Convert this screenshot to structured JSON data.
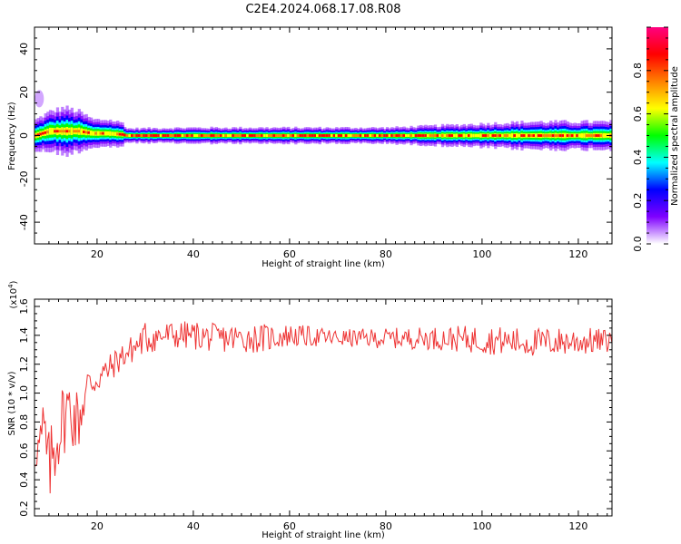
{
  "figure": {
    "title": "C2E4.2024.068.17.08.R08",
    "font_family": "DejaVu Sans"
  },
  "chart_data": [
    {
      "type": "heatmap",
      "title": "",
      "xlabel": "Height of straight line (km)",
      "ylabel": "Frequency (Hz)",
      "xlim": [
        7,
        127
      ],
      "ylim": [
        -50,
        50
      ],
      "xticks": [
        20,
        40,
        60,
        80,
        100,
        120
      ],
      "yticks": [
        -40,
        -20,
        0,
        20,
        40
      ],
      "colorbar": {
        "label": "Normalized spectral amplitude",
        "range": [
          0,
          1
        ],
        "ticks": [
          "0.0",
          "0.2",
          "0.4",
          "0.6",
          "0.8"
        ],
        "tick_values": [
          0.0,
          0.2,
          0.4,
          0.6,
          0.8
        ],
        "colors": [
          "#ffffff",
          "#7f00ff",
          "#0000ff",
          "#00ffff",
          "#00ff00",
          "#ffff00",
          "#ff8000",
          "#ff0000",
          "#ff0080"
        ]
      },
      "band": {
        "x": [
          7,
          10,
          13,
          16,
          19,
          22,
          25,
          26,
          40,
          60,
          80,
          100,
          110,
          127
        ],
        "halfwidth_hz": [
          4,
          5,
          6,
          5,
          3.5,
          3.5,
          3,
          1.8,
          2,
          2,
          2,
          3,
          3.5,
          3.5
        ],
        "center_hz": [
          0,
          2,
          2,
          2,
          1,
          1,
          0.5,
          0,
          0,
          0,
          0,
          0,
          0,
          0
        ]
      },
      "outlier": {
        "x": 8,
        "y_range_hz": [
          13,
          21
        ]
      }
    },
    {
      "type": "line",
      "title": "",
      "xlabel": "Height of straight line (km)",
      "ylabel": "SNR (10 * v/v)",
      "y_multiplier": "(x10",
      "y_multiplier_exp": "4",
      "y_multiplier_close": ")",
      "xlim": [
        7,
        127
      ],
      "ylim": [
        0.15,
        1.65
      ],
      "xticks": [
        20,
        40,
        60,
        80,
        100,
        120
      ],
      "yticks": [
        0.2,
        0.4,
        0.6,
        0.8,
        1.0,
        1.2,
        1.4,
        1.6
      ],
      "ytick_labels": [
        "0.2",
        "0.4",
        "0.6",
        "0.8",
        "1.0",
        "1.2",
        "1.4",
        "1.6"
      ],
      "color": "#ee3333",
      "series_envelope": {
        "x": [
          7,
          8,
          9,
          10,
          12,
          14,
          16,
          18,
          20,
          22,
          25,
          28,
          30,
          35,
          40,
          45,
          50,
          55,
          60,
          70,
          80,
          90,
          100,
          110,
          120,
          127
        ],
        "mean": [
          0.55,
          0.65,
          0.7,
          0.45,
          0.75,
          0.9,
          0.8,
          1.05,
          1.1,
          1.15,
          1.25,
          1.32,
          1.38,
          1.4,
          1.4,
          1.38,
          1.38,
          1.38,
          1.4,
          1.38,
          1.38,
          1.38,
          1.37,
          1.35,
          1.36,
          1.36
        ],
        "amp": [
          0.1,
          0.15,
          0.35,
          0.3,
          0.3,
          0.25,
          0.25,
          0.15,
          0.12,
          0.1,
          0.1,
          0.1,
          0.12,
          0.1,
          0.1,
          0.1,
          0.1,
          0.1,
          0.08,
          0.06,
          0.07,
          0.08,
          0.1,
          0.1,
          0.1,
          0.08
        ]
      }
    }
  ]
}
